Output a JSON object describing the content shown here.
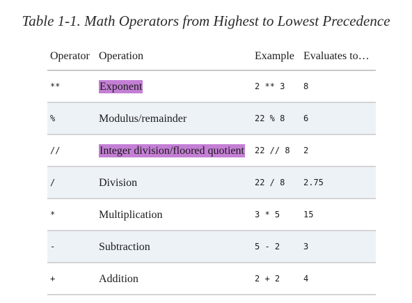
{
  "caption": "Table 1-1. Math Operators from Highest to Lowest Precedence",
  "highlight_color": "#c47fd5",
  "row_shade_color": "#edf2f7",
  "headers": {
    "operator": "Operator",
    "operation": "Operation",
    "example": "Example",
    "evaluates": "Evaluates to…"
  },
  "rows": [
    {
      "operator": "**",
      "operation": "Exponent",
      "highlighted": true,
      "example": "2 ** 3",
      "result": "8"
    },
    {
      "operator": "%",
      "operation": "Modulus/remainder",
      "highlighted": false,
      "example": "22 % 8",
      "result": "6"
    },
    {
      "operator": "//",
      "operation": "Integer division/floored quotient",
      "highlighted": true,
      "example": "22 // 8",
      "result": "2"
    },
    {
      "operator": "/",
      "operation": "Division",
      "highlighted": false,
      "example": "22 / 8",
      "result": "2.75"
    },
    {
      "operator": "*",
      "operation": "Multiplication",
      "highlighted": false,
      "example": "3 * 5",
      "result": "15"
    },
    {
      "operator": "-",
      "operation": "Subtraction",
      "highlighted": false,
      "example": "5 - 2",
      "result": "3"
    },
    {
      "operator": "+",
      "operation": "Addition",
      "highlighted": false,
      "example": "2 + 2",
      "result": "4"
    }
  ]
}
